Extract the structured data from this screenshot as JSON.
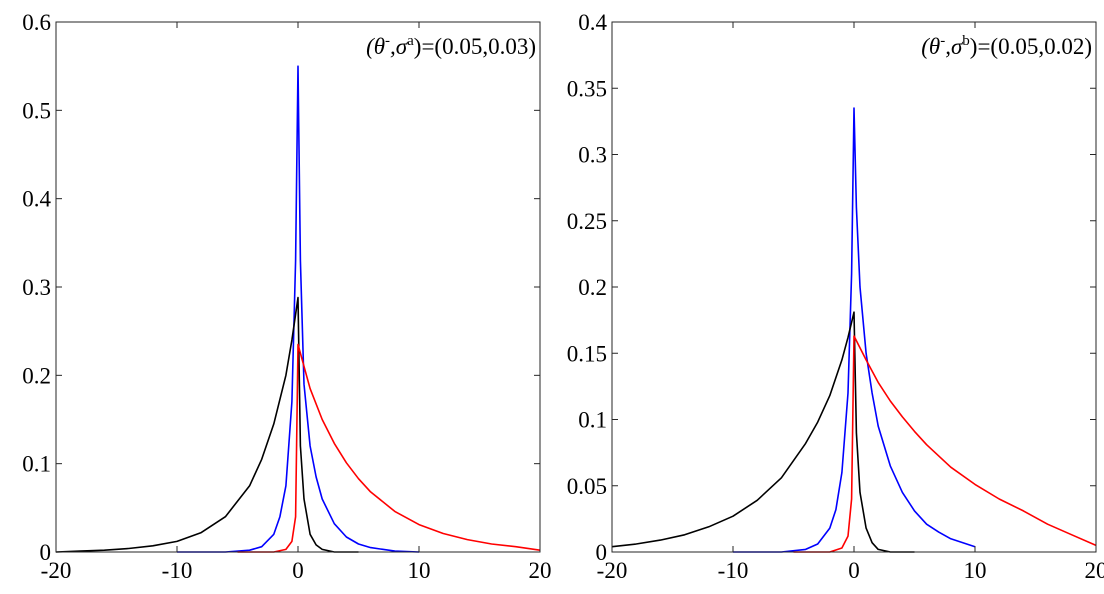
{
  "chart_data": [
    {
      "type": "line",
      "annotation": {
        "base": "(θ",
        "sup1": "-",
        "mid": ",σ",
        "sup2": "a",
        "tail": ")=(0.05,0.03)"
      },
      "xlim": [
        -20,
        20
      ],
      "ylim": [
        0,
        0.6
      ],
      "xticks": [
        -20,
        -10,
        0,
        10,
        20
      ],
      "yticks": [
        0,
        0.1,
        0.2,
        0.3,
        0.4,
        0.5,
        0.6
      ],
      "ytick_labels": [
        "0",
        "0.1",
        "0.2",
        "0.3",
        "0.4",
        "0.5",
        "0.6"
      ],
      "grid": false,
      "series": [
        {
          "color": "#0000ff",
          "x": [
            -10,
            -8,
            -6,
            -4,
            -3,
            -2,
            -1.5,
            -1,
            -0.5,
            -0.2,
            0,
            0.2,
            0.5,
            1,
            1.5,
            2,
            3,
            4,
            5,
            6,
            8,
            10
          ],
          "y": [
            0,
            0,
            0,
            0.002,
            0.006,
            0.02,
            0.04,
            0.075,
            0.17,
            0.33,
            0.55,
            0.33,
            0.19,
            0.12,
            0.085,
            0.06,
            0.032,
            0.017,
            0.009,
            0.005,
            0.001,
            0
          ]
        },
        {
          "color": "#000000",
          "x": [
            -20,
            -18,
            -16,
            -14,
            -12,
            -10,
            -8,
            -6,
            -4,
            -3,
            -2,
            -1,
            -0.5,
            0,
            0.2,
            0.5,
            1,
            1.5,
            2,
            3,
            5
          ],
          "y": [
            0,
            0.001,
            0.002,
            0.004,
            0.007,
            0.012,
            0.022,
            0.04,
            0.075,
            0.105,
            0.145,
            0.2,
            0.24,
            0.288,
            0.12,
            0.06,
            0.02,
            0.008,
            0.003,
            0,
            0
          ]
        },
        {
          "color": "#ff0000",
          "x": [
            -5,
            -3,
            -2,
            -1,
            -0.5,
            -0.2,
            0,
            1,
            2,
            3,
            4,
            5,
            6,
            8,
            10,
            12,
            14,
            16,
            18,
            20
          ],
          "y": [
            0,
            0,
            0,
            0.003,
            0.012,
            0.04,
            0.235,
            0.185,
            0.15,
            0.123,
            0.101,
            0.083,
            0.068,
            0.046,
            0.031,
            0.021,
            0.014,
            0.009,
            0.006,
            0.002
          ]
        }
      ]
    },
    {
      "type": "line",
      "annotation": {
        "base": "(θ",
        "sup1": "-",
        "mid": ",σ",
        "sup2": "b",
        "tail": ")=(0.05,0.02)"
      },
      "xlim": [
        -20,
        20
      ],
      "ylim": [
        0,
        0.4
      ],
      "xticks": [
        -20,
        -10,
        0,
        10,
        20
      ],
      "yticks": [
        0,
        0.05,
        0.1,
        0.15,
        0.2,
        0.25,
        0.3,
        0.35,
        0.4
      ],
      "ytick_labels": [
        "0",
        "0.05",
        "0.1",
        "0.15",
        "0.2",
        "0.25",
        "0.3",
        "0.35",
        "0.4"
      ],
      "grid": false,
      "series": [
        {
          "color": "#0000ff",
          "x": [
            -10,
            -8,
            -6,
            -4,
            -3,
            -2,
            -1.5,
            -1,
            -0.5,
            -0.2,
            0,
            0.2,
            0.5,
            1,
            1.5,
            2,
            3,
            4,
            5,
            6,
            7,
            8,
            9,
            10
          ],
          "y": [
            0,
            0,
            0,
            0.002,
            0.006,
            0.018,
            0.032,
            0.06,
            0.12,
            0.21,
            0.335,
            0.26,
            0.2,
            0.15,
            0.12,
            0.095,
            0.065,
            0.045,
            0.031,
            0.021,
            0.015,
            0.01,
            0.007,
            0.004
          ]
        },
        {
          "color": "#000000",
          "x": [
            -20,
            -18,
            -16,
            -14,
            -12,
            -10,
            -8,
            -6,
            -4,
            -3,
            -2,
            -1,
            -0.5,
            0,
            0.2,
            0.5,
            1,
            1.5,
            2,
            3,
            5
          ],
          "y": [
            0.004,
            0.006,
            0.009,
            0.013,
            0.019,
            0.027,
            0.039,
            0.056,
            0.082,
            0.098,
            0.118,
            0.145,
            0.162,
            0.181,
            0.09,
            0.045,
            0.018,
            0.007,
            0.002,
            0,
            0
          ]
        },
        {
          "color": "#ff0000",
          "x": [
            -5,
            -3,
            -2,
            -1,
            -0.5,
            -0.2,
            0,
            1,
            2,
            3,
            4,
            5,
            6,
            8,
            10,
            12,
            14,
            16,
            18,
            20
          ],
          "y": [
            0,
            0,
            0,
            0.003,
            0.012,
            0.04,
            0.163,
            0.145,
            0.128,
            0.114,
            0.102,
            0.091,
            0.081,
            0.064,
            0.051,
            0.04,
            0.031,
            0.021,
            0.013,
            0.005
          ]
        }
      ]
    }
  ]
}
